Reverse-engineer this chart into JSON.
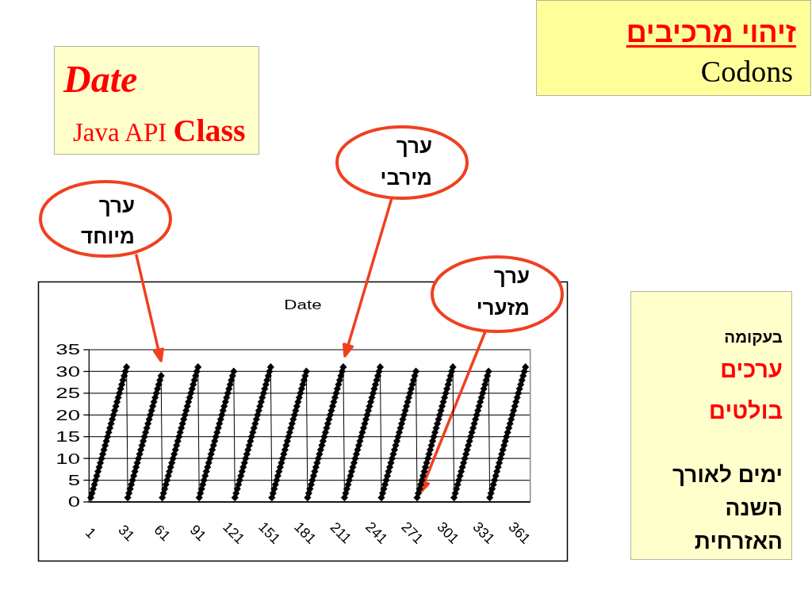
{
  "chart_data": {
    "type": "line",
    "title": "Date",
    "x": [
      1,
      2,
      3,
      4,
      5,
      6,
      7,
      8,
      9,
      10,
      11,
      12,
      13,
      14,
      15,
      16,
      17,
      18,
      19,
      20,
      21,
      22,
      23,
      24,
      25,
      26,
      27,
      28,
      29,
      30,
      31,
      32,
      33,
      34,
      35,
      36,
      37,
      38,
      39,
      40,
      41,
      42,
      43,
      44,
      45,
      46,
      47,
      48,
      49,
      50,
      51,
      52,
      53,
      54,
      55,
      56,
      57,
      58,
      59,
      60,
      61,
      62,
      63,
      64,
      65,
      66,
      67,
      68,
      69,
      70,
      71,
      72,
      73,
      74,
      75,
      76,
      77,
      78,
      79,
      80,
      81,
      82,
      83,
      84,
      85,
      86,
      87,
      88,
      89,
      90,
      91,
      92,
      93,
      94,
      95,
      96,
      97,
      98,
      99,
      100,
      101,
      102,
      103,
      104,
      105,
      106,
      107,
      108,
      109,
      110,
      111,
      112,
      113,
      114,
      115,
      116,
      117,
      118,
      119,
      120,
      121,
      122,
      123,
      124,
      125,
      126,
      127,
      128,
      129,
      130,
      131,
      132,
      133,
      134,
      135,
      136,
      137,
      138,
      139,
      140,
      141,
      142,
      143,
      144,
      145,
      146,
      147,
      148,
      149,
      150,
      151,
      152,
      153,
      154,
      155,
      156,
      157,
      158,
      159,
      160,
      161,
      162,
      163,
      164,
      165,
      166,
      167,
      168,
      169,
      170,
      171,
      172,
      173,
      174,
      175,
      176,
      177,
      178,
      179,
      180,
      181,
      182,
      183,
      184,
      185,
      186,
      187,
      188,
      189,
      190,
      191,
      192,
      193,
      194,
      195,
      196,
      197,
      198,
      199,
      200,
      201,
      202,
      203,
      204,
      205,
      206,
      207,
      208,
      209,
      210,
      211,
      212,
      213,
      214,
      215,
      216,
      217,
      218,
      219,
      220,
      221,
      222,
      223,
      224,
      225,
      226,
      227,
      228,
      229,
      230,
      231,
      232,
      233,
      234,
      235,
      236,
      237,
      238,
      239,
      240,
      241,
      242,
      243,
      244,
      245,
      246,
      247,
      248,
      249,
      250,
      251,
      252,
      253,
      254,
      255,
      256,
      257,
      258,
      259,
      260,
      261,
      262,
      263,
      264,
      265,
      266,
      267,
      268,
      269,
      270,
      271,
      272,
      273,
      274,
      275,
      276,
      277,
      278,
      279,
      280,
      281,
      282,
      283,
      284,
      285,
      286,
      287,
      288,
      289,
      290,
      291,
      292,
      293,
      294,
      295,
      296,
      297,
      298,
      299,
      300,
      301,
      302,
      303,
      304,
      305,
      306,
      307,
      308,
      309,
      310,
      311,
      312,
      313,
      314,
      315,
      316,
      317,
      318,
      319,
      320,
      321,
      322,
      323,
      324,
      325,
      326,
      327,
      328,
      329,
      330,
      331,
      332,
      333,
      334,
      335,
      336,
      337,
      338,
      339,
      340,
      341,
      342,
      343,
      344,
      345,
      346,
      347,
      348,
      349,
      350,
      351,
      352,
      353,
      354,
      355,
      356,
      357,
      358,
      359,
      360,
      361,
      362,
      363,
      364,
      365,
      366
    ],
    "series": [
      {
        "color": "#000000",
        "values": [
          1,
          2,
          3,
          4,
          5,
          6,
          7,
          8,
          9,
          10,
          11,
          12,
          13,
          14,
          15,
          16,
          17,
          18,
          19,
          20,
          21,
          22,
          23,
          24,
          25,
          26,
          27,
          28,
          29,
          30,
          31,
          1,
          2,
          3,
          4,
          5,
          6,
          7,
          8,
          9,
          10,
          11,
          12,
          13,
          14,
          15,
          16,
          17,
          18,
          19,
          20,
          21,
          22,
          23,
          24,
          25,
          26,
          27,
          28,
          29,
          1,
          2,
          3,
          4,
          5,
          6,
          7,
          8,
          9,
          10,
          11,
          12,
          13,
          14,
          15,
          16,
          17,
          18,
          19,
          20,
          21,
          22,
          23,
          24,
          25,
          26,
          27,
          28,
          29,
          30,
          31,
          1,
          2,
          3,
          4,
          5,
          6,
          7,
          8,
          9,
          10,
          11,
          12,
          13,
          14,
          15,
          16,
          17,
          18,
          19,
          20,
          21,
          22,
          23,
          24,
          25,
          26,
          27,
          28,
          29,
          30,
          1,
          2,
          3,
          4,
          5,
          6,
          7,
          8,
          9,
          10,
          11,
          12,
          13,
          14,
          15,
          16,
          17,
          18,
          19,
          20,
          21,
          22,
          23,
          24,
          25,
          26,
          27,
          28,
          29,
          30,
          31,
          1,
          2,
          3,
          4,
          5,
          6,
          7,
          8,
          9,
          10,
          11,
          12,
          13,
          14,
          15,
          16,
          17,
          18,
          19,
          20,
          21,
          22,
          23,
          24,
          25,
          26,
          27,
          28,
          29,
          30,
          1,
          2,
          3,
          4,
          5,
          6,
          7,
          8,
          9,
          10,
          11,
          12,
          13,
          14,
          15,
          16,
          17,
          18,
          19,
          20,
          21,
          22,
          23,
          24,
          25,
          26,
          27,
          28,
          29,
          30,
          31,
          1,
          2,
          3,
          4,
          5,
          6,
          7,
          8,
          9,
          10,
          11,
          12,
          13,
          14,
          15,
          16,
          17,
          18,
          19,
          20,
          21,
          22,
          23,
          24,
          25,
          26,
          27,
          28,
          29,
          30,
          31,
          1,
          2,
          3,
          4,
          5,
          6,
          7,
          8,
          9,
          10,
          11,
          12,
          13,
          14,
          15,
          16,
          17,
          18,
          19,
          20,
          21,
          22,
          23,
          24,
          25,
          26,
          27,
          28,
          29,
          30,
          1,
          2,
          3,
          4,
          5,
          6,
          7,
          8,
          9,
          10,
          11,
          12,
          13,
          14,
          15,
          16,
          17,
          18,
          19,
          20,
          21,
          22,
          23,
          24,
          25,
          26,
          27,
          28,
          29,
          30,
          31,
          1,
          2,
          3,
          4,
          5,
          6,
          7,
          8,
          9,
          10,
          11,
          12,
          13,
          14,
          15,
          16,
          17,
          18,
          19,
          20,
          21,
          22,
          23,
          24,
          25,
          26,
          27,
          28,
          29,
          30,
          1,
          2,
          3,
          4,
          5,
          6,
          7,
          8,
          9,
          10,
          11,
          12,
          13,
          14,
          15,
          16,
          17,
          18,
          19,
          20,
          21,
          22,
          23,
          24,
          25,
          26,
          27,
          28,
          29,
          30,
          31
        ]
      }
    ],
    "xlim": [
      -0.5,
      370
    ],
    "xticks": [
      1,
      31,
      61,
      91,
      121,
      151,
      181,
      211,
      241,
      271,
      301,
      331,
      361
    ],
    "ylim": [
      0,
      35
    ],
    "yticks": [
      0,
      5,
      10,
      15,
      20,
      25,
      30,
      35
    ],
    "grid": "y",
    "marker": "diamond",
    "line_style": "solid",
    "annotations": [
      "זיהוי מרכיבים",
      "Codons",
      "Date",
      "Java API Class",
      "ערך מיוחד",
      "ערך מירבי",
      "ערך מזערי",
      "בעקומה",
      "ערכים",
      "בולטים",
      "ימים לאורך",
      "השנה",
      "האזרחית"
    ]
  }
}
